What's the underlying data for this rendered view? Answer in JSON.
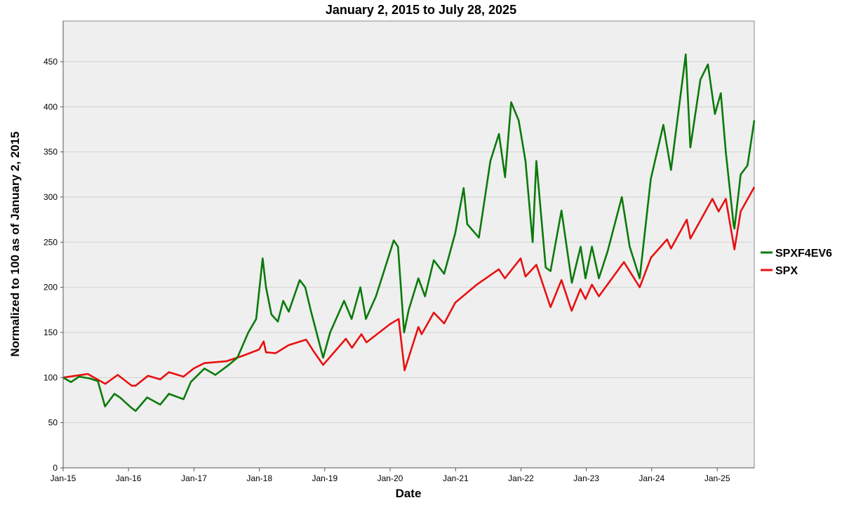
{
  "chart_data": {
    "type": "line",
    "title": "January 2, 2015 to July 28, 2025",
    "xlabel": "Date",
    "ylabel": "Normalized to 100 as of January 2, 2015",
    "xlim": [
      "2015-01-02",
      "2025-07-28"
    ],
    "ylim": [
      0,
      495
    ],
    "x_ticks": [
      "Jan-15",
      "Jan-16",
      "Jan-17",
      "Jan-18",
      "Jan-19",
      "Jan-20",
      "Jan-21",
      "Jan-22",
      "Jan-23",
      "Jan-24",
      "Jan-25"
    ],
    "y_ticks": [
      0,
      50,
      100,
      150,
      200,
      250,
      300,
      350,
      400,
      450
    ],
    "grid": "horizontal",
    "legend_position": "right",
    "background": "#efefef",
    "series": [
      {
        "name": "SPXF4EV6",
        "color": "#0a7a0a",
        "points": [
          [
            "2015-01-02",
            100
          ],
          [
            "2015-02-15",
            95
          ],
          [
            "2015-04-01",
            101
          ],
          [
            "2015-06-01",
            99
          ],
          [
            "2015-07-15",
            96
          ],
          [
            "2015-08-24",
            68
          ],
          [
            "2015-10-15",
            82
          ],
          [
            "2015-11-15",
            78
          ],
          [
            "2016-01-15",
            67
          ],
          [
            "2016-02-11",
            63
          ],
          [
            "2016-04-15",
            78
          ],
          [
            "2016-06-27",
            70
          ],
          [
            "2016-08-15",
            82
          ],
          [
            "2016-11-04",
            76
          ],
          [
            "2016-12-15",
            95
          ],
          [
            "2017-03-01",
            110
          ],
          [
            "2017-05-01",
            103
          ],
          [
            "2017-07-15",
            114
          ],
          [
            "2017-09-01",
            122
          ],
          [
            "2017-11-01",
            150
          ],
          [
            "2017-12-15",
            165
          ],
          [
            "2018-01-20",
            232
          ],
          [
            "2018-02-08",
            200
          ],
          [
            "2018-03-10",
            170
          ],
          [
            "2018-04-15",
            162
          ],
          [
            "2018-05-15",
            185
          ],
          [
            "2018-06-15",
            173
          ],
          [
            "2018-08-15",
            208
          ],
          [
            "2018-09-15",
            200
          ],
          [
            "2018-10-15",
            175
          ],
          [
            "2018-12-24",
            122
          ],
          [
            "2019-02-01",
            150
          ],
          [
            "2019-04-20",
            185
          ],
          [
            "2019-06-01",
            165
          ],
          [
            "2019-07-20",
            200
          ],
          [
            "2019-08-20",
            165
          ],
          [
            "2019-10-15",
            190
          ],
          [
            "2019-12-31",
            238
          ],
          [
            "2020-01-22",
            252
          ],
          [
            "2020-02-15",
            245
          ],
          [
            "2020-03-20",
            150
          ],
          [
            "2020-04-15",
            175
          ],
          [
            "2020-06-08",
            210
          ],
          [
            "2020-07-15",
            190
          ],
          [
            "2020-09-02",
            230
          ],
          [
            "2020-10-30",
            215
          ],
          [
            "2020-12-31",
            260
          ],
          [
            "2021-02-16",
            310
          ],
          [
            "2021-03-08",
            270
          ],
          [
            "2021-05-12",
            255
          ],
          [
            "2021-07-15",
            340
          ],
          [
            "2021-09-01",
            370
          ],
          [
            "2021-10-05",
            322
          ],
          [
            "2021-11-08",
            405
          ],
          [
            "2021-12-20",
            385
          ],
          [
            "2022-01-27",
            340
          ],
          [
            "2022-03-08",
            250
          ],
          [
            "2022-03-29",
            340
          ],
          [
            "2022-05-20",
            222
          ],
          [
            "2022-06-16",
            218
          ],
          [
            "2022-08-16",
            285
          ],
          [
            "2022-10-13",
            205
          ],
          [
            "2022-12-01",
            245
          ],
          [
            "2022-12-28",
            210
          ],
          [
            "2023-02-02",
            245
          ],
          [
            "2023-03-13",
            210
          ],
          [
            "2023-05-01",
            240
          ],
          [
            "2023-07-19",
            300
          ],
          [
            "2023-09-01",
            245
          ],
          [
            "2023-10-27",
            210
          ],
          [
            "2023-12-28",
            320
          ],
          [
            "2024-03-07",
            380
          ],
          [
            "2024-04-19",
            330
          ],
          [
            "2024-07-10",
            458
          ],
          [
            "2024-08-05",
            355
          ],
          [
            "2024-09-30",
            430
          ],
          [
            "2024-11-11",
            447
          ],
          [
            "2024-12-20",
            392
          ],
          [
            "2025-01-22",
            415
          ],
          [
            "2025-02-19",
            350
          ],
          [
            "2025-04-04",
            268
          ],
          [
            "2025-04-08",
            265
          ],
          [
            "2025-05-13",
            325
          ],
          [
            "2025-06-20",
            335
          ],
          [
            "2025-07-28",
            385
          ]
        ]
      },
      {
        "name": "SPX",
        "color": "#e81010",
        "points": [
          [
            "2015-01-02",
            100
          ],
          [
            "2015-05-20",
            104
          ],
          [
            "2015-08-25",
            93
          ],
          [
            "2015-11-03",
            103
          ],
          [
            "2016-01-20",
            91
          ],
          [
            "2016-02-11",
            91
          ],
          [
            "2016-04-20",
            102
          ],
          [
            "2016-06-27",
            98
          ],
          [
            "2016-08-15",
            106
          ],
          [
            "2016-11-04",
            101
          ],
          [
            "2016-12-31",
            110
          ],
          [
            "2017-03-01",
            116
          ],
          [
            "2017-06-30",
            118
          ],
          [
            "2017-09-30",
            124
          ],
          [
            "2017-12-31",
            131
          ],
          [
            "2018-01-26",
            140
          ],
          [
            "2018-02-08",
            128
          ],
          [
            "2018-04-02",
            127
          ],
          [
            "2018-06-15",
            136
          ],
          [
            "2018-09-20,",
            142
          ],
          [
            "2018-10-29",
            130
          ],
          [
            "2018-12-24",
            114
          ],
          [
            "2019-04-30",
            143
          ],
          [
            "2019-06-03",
            133
          ],
          [
            "2019-07-26",
            148
          ],
          [
            "2019-08-23",
            139
          ],
          [
            "2019-12-31",
            159
          ],
          [
            "2020-02-19",
            165
          ],
          [
            "2020-03-23",
            108
          ],
          [
            "2020-06-08",
            156
          ],
          [
            "2020-06-26",
            148
          ],
          [
            "2020-09-02",
            172
          ],
          [
            "2020-10-30",
            160
          ],
          [
            "2020-12-31",
            183
          ],
          [
            "2021-04-30",
            203
          ],
          [
            "2021-08-31",
            220
          ],
          [
            "2021-10-04",
            210
          ],
          [
            "2021-12-31",
            232
          ],
          [
            "2022-01-27",
            212
          ],
          [
            "2022-03-29",
            225
          ],
          [
            "2022-06-16",
            178
          ],
          [
            "2022-08-16",
            208
          ],
          [
            "2022-10-12",
            174
          ],
          [
            "2022-11-30",
            198
          ],
          [
            "2022-12-28",
            187
          ],
          [
            "2023-02-02",
            203
          ],
          [
            "2023-03-13",
            190
          ],
          [
            "2023-07-31",
            228
          ],
          [
            "2023-10-27",
            200
          ],
          [
            "2023-12-29",
            233
          ],
          [
            "2024-03-28",
            253
          ],
          [
            "2024-04-19",
            243
          ],
          [
            "2024-07-16",
            275
          ],
          [
            "2024-08-05",
            254
          ],
          [
            "2024-12-06",
            298
          ],
          [
            "2025-01-10",
            284
          ],
          [
            "2025-02-19",
            298
          ],
          [
            "2025-04-08",
            242
          ],
          [
            "2025-05-13",
            284
          ],
          [
            "2025-07-28",
            311
          ]
        ]
      }
    ]
  }
}
